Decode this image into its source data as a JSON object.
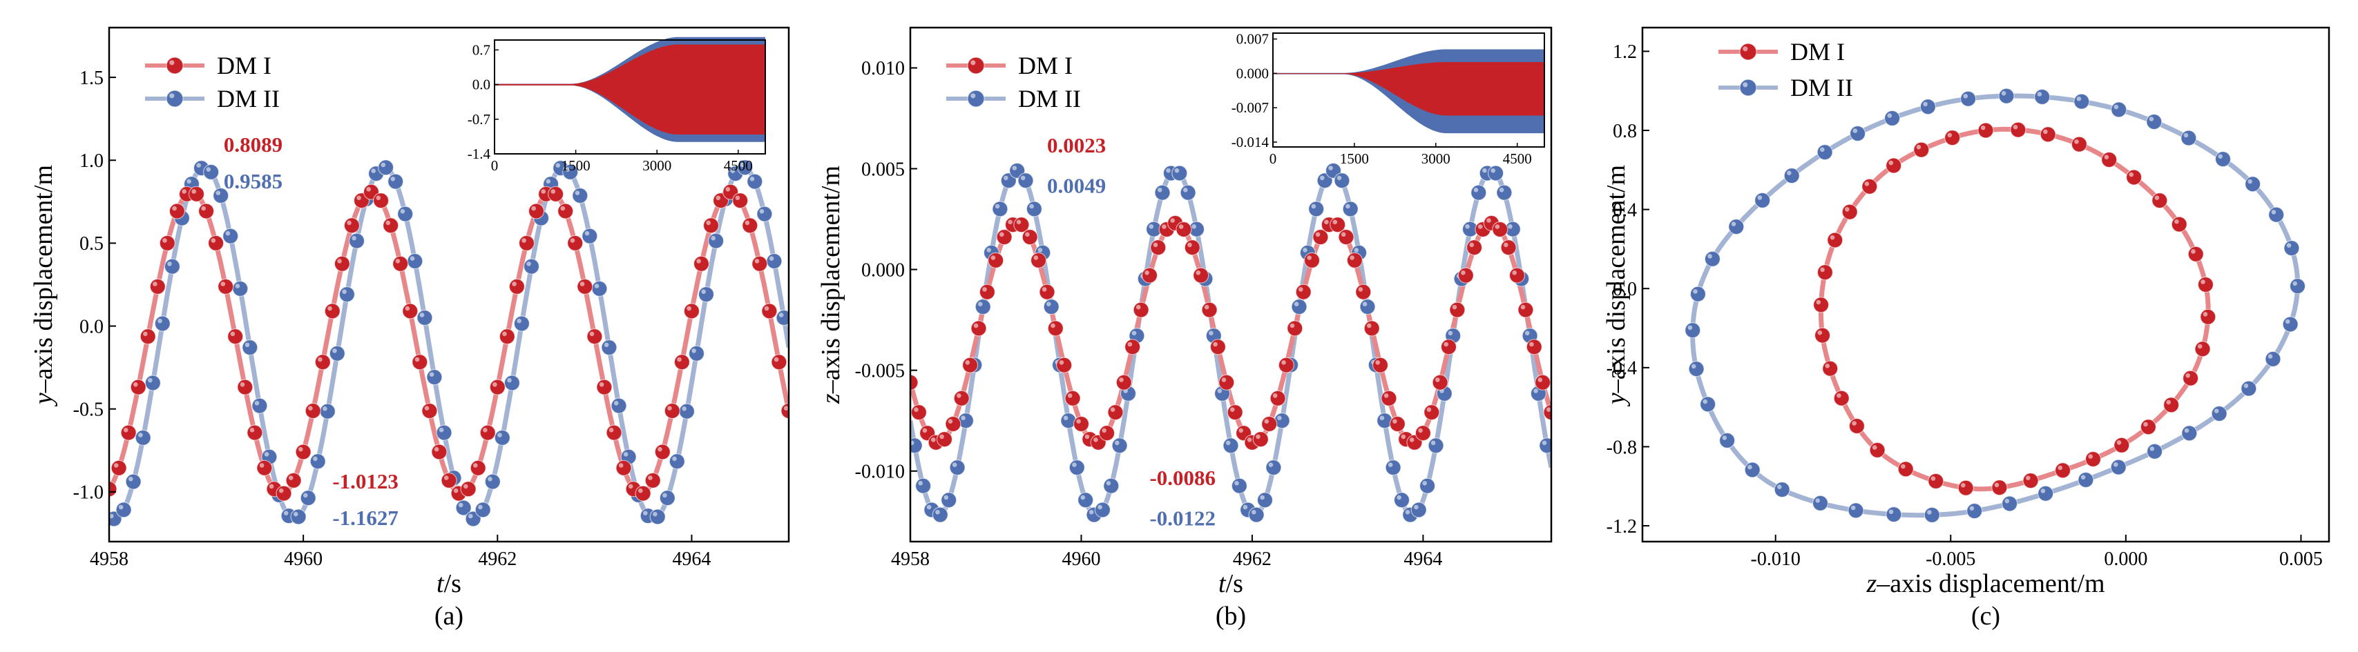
{
  "colors": {
    "red": "#C62127",
    "red_line": "#E8878A",
    "blue": "#4F6FB0",
    "blue_line": "#A2B3D3",
    "axis": "#000000"
  },
  "legend": {
    "series1": "DM I",
    "series2": "DM II"
  },
  "chart_data": [
    {
      "type": "line",
      "panel_label": "(a)",
      "xlabel_italic": "t",
      "xlabel_rest": "/s",
      "ylabel_italic": "y",
      "ylabel_rest": "–axis displacement/m",
      "xlim": [
        4958,
        4965
      ],
      "ylim": [
        -1.3,
        1.8
      ],
      "xticks": [
        4958,
        4960,
        4962,
        4964
      ],
      "yticks": [
        -1.0,
        -0.5,
        0.0,
        0.5,
        1.0,
        1.5
      ],
      "ytick_labels": [
        "-1.0",
        "-0.5",
        "0.0",
        "0.5",
        "1.0",
        "1.5"
      ],
      "series": [
        {
          "name": "DM I",
          "amp": 0.9106,
          "offset": -0.1017,
          "period": 1.85,
          "peak_t": 4958.85
        },
        {
          "name": "DM II",
          "amp": 1.0606,
          "offset": -0.1021,
          "period": 1.85,
          "peak_t": 4958.98
        }
      ],
      "annotations": [
        {
          "text": "0.8089",
          "series": 0,
          "t": 4959.18,
          "v": 1.05
        },
        {
          "text": "0.9585",
          "series": 1,
          "t": 4959.18,
          "v": 0.83
        },
        {
          "text": "-1.0123",
          "series": 0,
          "t": 4960.3,
          "v": -0.98
        },
        {
          "text": "-1.1627",
          "series": 1,
          "t": 4960.3,
          "v": -1.2
        }
      ],
      "inset": {
        "xlim": [
          0,
          5000
        ],
        "ylim": [
          -1.4,
          0.9
        ],
        "xticks": [
          0,
          1500,
          3000,
          4500
        ],
        "yticks": [
          -1.4,
          -0.7,
          0.0,
          0.7
        ],
        "ytick_labels": [
          "-1.4",
          "-0.7",
          "0.0",
          "0.7"
        ],
        "ramp_start": 1400,
        "ramp_end": 3400,
        "bands": [
          {
            "series": 1,
            "max": 0.96,
            "min": -1.16
          },
          {
            "series": 0,
            "max": 0.81,
            "min": -1.01
          }
        ]
      }
    },
    {
      "type": "line",
      "panel_label": "(b)",
      "xlabel_italic": "t",
      "xlabel_rest": "/s",
      "ylabel_italic": "z",
      "ylabel_rest": "–axis displacement/m",
      "xlim": [
        4958,
        4965.5
      ],
      "ylim": [
        -0.0135,
        0.012
      ],
      "xticks": [
        4958,
        4960,
        4962,
        4964
      ],
      "yticks": [
        -0.01,
        -0.005,
        0.0,
        0.005,
        0.01
      ],
      "ytick_labels": [
        "-0.010",
        "-0.005",
        "0.000",
        "0.005",
        "0.010"
      ],
      "series": [
        {
          "name": "DM I",
          "amp": 0.00545,
          "offset": -0.00315,
          "period": 1.85,
          "peak_t": 4959.25
        },
        {
          "name": "DM II",
          "amp": 0.00855,
          "offset": -0.00365,
          "period": 1.85,
          "peak_t": 4959.25
        }
      ],
      "annotations": [
        {
          "text": "0.0023",
          "series": 0,
          "t": 4959.6,
          "v": 0.0058
        },
        {
          "text": "0.0049",
          "series": 1,
          "t": 4959.6,
          "v": 0.0038
        },
        {
          "text": "-0.0086",
          "series": 0,
          "t": 4960.8,
          "v": -0.0107
        },
        {
          "text": "-0.0122",
          "series": 1,
          "t": 4960.8,
          "v": -0.0127
        }
      ],
      "inset": {
        "xlim": [
          0,
          5000
        ],
        "ylim": [
          -0.015,
          0.0082
        ],
        "xticks": [
          0,
          1500,
          3000,
          4500
        ],
        "yticks": [
          -0.014,
          -0.007,
          0.0,
          0.007
        ],
        "ytick_labels": [
          "-0.014",
          "-0.007",
          "0.000",
          "0.007"
        ],
        "ramp_start": 1300,
        "ramp_end": 3200,
        "bands": [
          {
            "series": 1,
            "max": 0.0049,
            "min": -0.0122
          },
          {
            "series": 0,
            "max": 0.0023,
            "min": -0.0086
          }
        ]
      }
    },
    {
      "type": "scatter",
      "panel_label": "(c)",
      "xlabel_italic": "z",
      "xlabel_rest": "–axis displacement/m",
      "ylabel_italic": "y",
      "ylabel_rest": "–axis displacement/m",
      "xlim": [
        -0.0138,
        0.0058
      ],
      "ylim": [
        -1.28,
        1.32
      ],
      "xticks": [
        -0.01,
        -0.005,
        0.0,
        0.005
      ],
      "xtick_labels": [
        "-0.010",
        "-0.005",
        "0.000",
        "0.005"
      ],
      "yticks": [
        -1.2,
        -0.8,
        -0.4,
        0.0,
        0.4,
        0.8,
        1.2
      ],
      "ytick_labels": [
        "-1.2",
        "-0.8",
        "-0.4",
        "0.0",
        "0.4",
        "0.8",
        "1.2"
      ],
      "orbits": [
        {
          "name": "DM II",
          "z": [
            -0.0045,
            -0.0001,
            0.0035,
            0.0049,
            0.0038,
            0.0005,
            -0.005,
            -0.01,
            -0.0122,
            -0.0118,
            -0.0085,
            -0.0045
          ],
          "y": [
            0.96,
            0.9,
            0.55,
            0.05,
            -0.45,
            -0.85,
            -1.14,
            -1.0,
            -0.45,
            0.15,
            0.7,
            0.96
          ]
        },
        {
          "name": "DM I",
          "z": [
            -0.004,
            -0.0012,
            0.0012,
            0.0023,
            0.002,
            0.0005,
            -0.0018,
            -0.0045,
            -0.0072,
            -0.0086,
            -0.0084,
            -0.0068,
            -0.004
          ],
          "y": [
            0.8,
            0.72,
            0.4,
            0.0,
            -0.4,
            -0.72,
            -0.92,
            -1.01,
            -0.8,
            -0.3,
            0.2,
            0.6,
            0.8
          ]
        }
      ]
    }
  ]
}
